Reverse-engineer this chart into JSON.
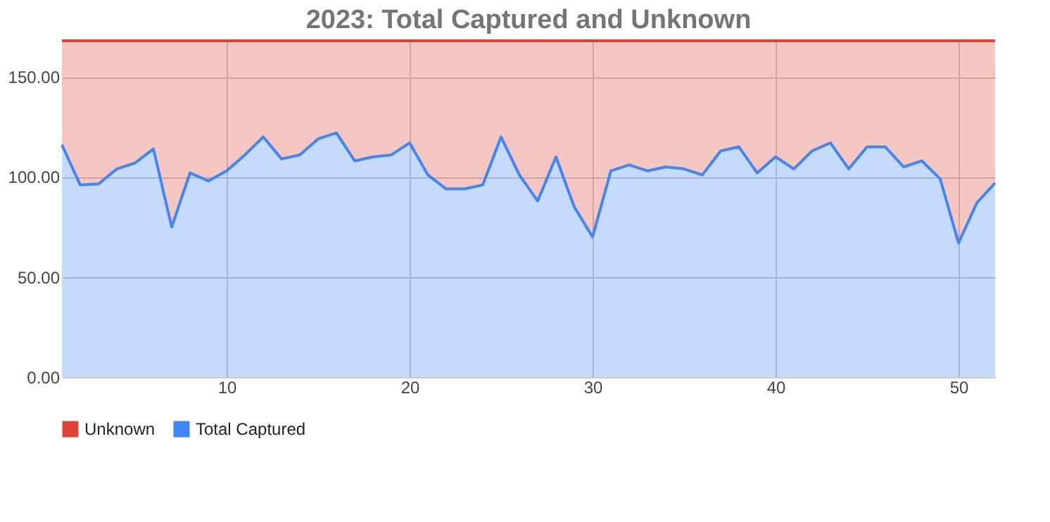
{
  "chart_data": {
    "type": "area",
    "title": "2023: Total Captured and Unknown",
    "stacked": true,
    "x": [
      1,
      2,
      3,
      4,
      5,
      6,
      7,
      8,
      9,
      10,
      11,
      12,
      13,
      14,
      15,
      16,
      17,
      18,
      19,
      20,
      21,
      22,
      23,
      24,
      25,
      26,
      27,
      28,
      29,
      30,
      31,
      32,
      33,
      34,
      35,
      36,
      37,
      38,
      39,
      40,
      41,
      42,
      43,
      44,
      45,
      46,
      47,
      48,
      49,
      50,
      51,
      52
    ],
    "series": [
      {
        "name": "Total Captured",
        "color": "#4285f4",
        "values": [
          116,
          96,
          96.5,
          104,
          107,
          114,
          75,
          102,
          98,
          103,
          111,
          120,
          109,
          111,
          119,
          122,
          108,
          110,
          111,
          117,
          101,
          94,
          94,
          96,
          120,
          101,
          88,
          110,
          85,
          70,
          103,
          106,
          103,
          105,
          104,
          101,
          113,
          115,
          102,
          110,
          104,
          113,
          117,
          104,
          115,
          115,
          105,
          108,
          99,
          67,
          87,
          97
        ]
      },
      {
        "name": "Unknown",
        "color": "#db4437",
        "values": [
          52,
          72,
          71.5,
          64,
          61,
          54,
          93,
          66,
          70,
          65,
          57,
          48,
          59,
          57,
          49,
          46,
          60,
          58,
          57,
          51,
          67,
          74,
          74,
          72,
          48,
          67,
          80,
          58,
          83,
          98,
          65,
          62,
          65,
          63,
          64,
          67,
          55,
          53,
          66,
          58,
          64,
          55,
          51,
          64,
          53,
          53,
          63,
          60,
          69,
          101,
          81,
          71
        ]
      }
    ],
    "xlim": [
      1,
      52
    ],
    "xticks": [
      10,
      20,
      30,
      40,
      50
    ],
    "ylim": [
      0,
      168
    ],
    "yticks": [
      {
        "value": 0,
        "label": "0.00"
      },
      {
        "value": 50,
        "label": "50.00"
      },
      {
        "value": 100,
        "label": "100.00"
      },
      {
        "value": 150,
        "label": "150.00"
      }
    ],
    "grid": true,
    "legend": "bottom"
  }
}
